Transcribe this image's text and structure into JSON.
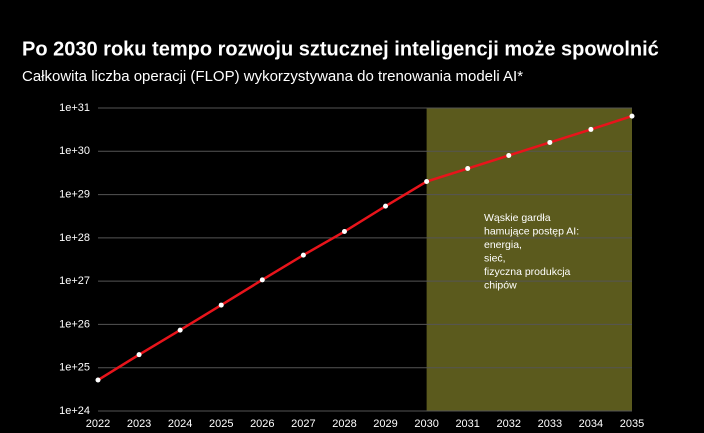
{
  "chart_data": {
    "type": "line",
    "title": "Po 2030 roku tempo rozwoju sztucznej inteligencji może spowolnić",
    "subtitle": "Całkowita liczba operacji (FLOP) wykorzystywana do trenowania modeli AI*",
    "x": [
      2022,
      2023,
      2024,
      2025,
      2026,
      2027,
      2028,
      2029,
      2030,
      2031,
      2032,
      2033,
      2034,
      2035
    ],
    "series": [
      {
        "color": "#e8141b",
        "values": [
          5.2e+24,
          2e+25,
          7.4e+25,
          2.8e+26,
          1.07e+27,
          4e+27,
          1.4e+28,
          5.4e+28,
          2e+29,
          4e+29,
          8e+29,
          1.6e+30,
          3.2e+30,
          6.5e+30
        ]
      }
    ],
    "xlim": [
      2022,
      2035
    ],
    "xticks": [
      2022,
      2023,
      2024,
      2025,
      2026,
      2027,
      2028,
      2029,
      2030,
      2031,
      2032,
      2033,
      2034,
      2035
    ],
    "ylim": [
      1e+24,
      1e+31
    ],
    "ylog": true,
    "yticks": [
      {
        "value": 1e+24,
        "label": "1e+24"
      },
      {
        "value": 1e+25,
        "label": "1e+25"
      },
      {
        "value": 1e+26,
        "label": "1e+26"
      },
      {
        "value": 1e+27,
        "label": "1e+27"
      },
      {
        "value": 1e+28,
        "label": "1e+28"
      },
      {
        "value": 1e+29,
        "label": "1e+29"
      },
      {
        "value": 1e+30,
        "label": "1e+30"
      },
      {
        "value": 1e+31,
        "label": "1e+31"
      }
    ],
    "grid": true,
    "shaded_range": [
      2030,
      2035
    ],
    "shaded_color": "#5b5a1d",
    "annotation": [
      "Wąskie gardła",
      "hamujące postęp AI:",
      "energia,",
      "sieć,",
      "fizyczna produkcja",
      "chipów"
    ]
  }
}
